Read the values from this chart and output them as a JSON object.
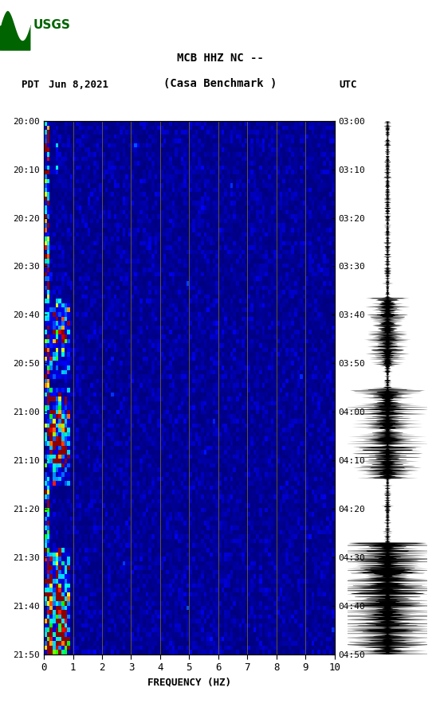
{
  "title_line1": "MCB HHZ NC --",
  "title_line2": "(Casa Benchmark )",
  "date_label": "Jun 8,2021",
  "left_tz": "PDT",
  "right_tz": "UTC",
  "left_times": [
    "20:00",
    "20:10",
    "20:20",
    "20:30",
    "20:40",
    "20:50",
    "21:00",
    "21:10",
    "21:20",
    "21:30",
    "21:40",
    "21:50"
  ],
  "right_times": [
    "03:00",
    "03:10",
    "03:20",
    "03:30",
    "03:40",
    "03:50",
    "04:00",
    "04:10",
    "04:20",
    "04:30",
    "04:40",
    "04:50"
  ],
  "freq_min": 0,
  "freq_max": 10,
  "freq_ticks": [
    0,
    1,
    2,
    3,
    4,
    5,
    6,
    7,
    8,
    9,
    10
  ],
  "freq_label": "FREQUENCY (HZ)",
  "colormap_colors": [
    "#000080",
    "#0000FF",
    "#0080FF",
    "#00FFFF",
    "#00FF80",
    "#FFFF00",
    "#FF8000",
    "#FF0000",
    "#800000"
  ],
  "spectrogram_bg": "#000080",
  "fig_width": 5.52,
  "fig_height": 8.93,
  "vertical_lines_freq": [
    1.0,
    2.0,
    3.0,
    4.0,
    5.0,
    6.0,
    7.0,
    8.0,
    9.0
  ],
  "vertical_lines_color": "#8B8000",
  "n_time_steps": 120,
  "n_freq_steps": 100,
  "usgs_logo_color": "#006400"
}
